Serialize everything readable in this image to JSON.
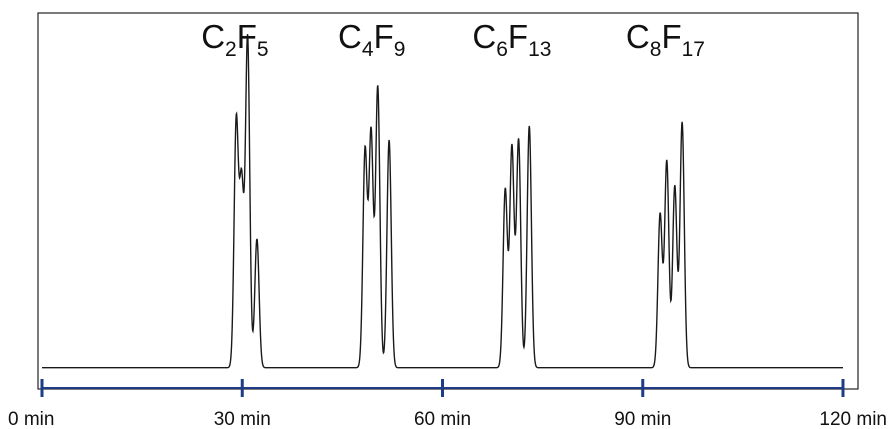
{
  "chart_data": {
    "type": "line",
    "xlabel": "",
    "ylabel": "",
    "xlim": [
      0,
      120
    ],
    "x_unit": "min",
    "grid": false,
    "legend": "none",
    "x_ticks": [
      {
        "value": 0,
        "label": "0 min"
      },
      {
        "value": 30,
        "label": "30 min"
      },
      {
        "value": 60,
        "label": "60 min"
      },
      {
        "value": 90,
        "label": "90 min"
      },
      {
        "value": 120,
        "label": "120 min"
      }
    ],
    "peak_groups": [
      {
        "formula": "C2F5",
        "base": "C",
        "n1": "2",
        "mid": "F",
        "n2": "5",
        "center_min": 29.5
      },
      {
        "formula": "C4F9",
        "base": "C",
        "n1": "4",
        "mid": "F",
        "n2": "9",
        "center_min": 50
      },
      {
        "formula": "C6F13",
        "base": "C",
        "n1": "6",
        "mid": "F",
        "n2": "13",
        "center_min": 71
      },
      {
        "formula": "C8F17",
        "base": "C",
        "n1": "8",
        "mid": "F",
        "n2": "17",
        "center_min": 94
      }
    ],
    "ylim": [
      0,
      1
    ],
    "peaks": [
      {
        "x": 29.1,
        "y": 0.71
      },
      {
        "x": 29.9,
        "y": 0.53
      },
      {
        "x": 30.8,
        "y": 0.95
      },
      {
        "x": 32.2,
        "y": 0.38
      },
      {
        "x": 48.4,
        "y": 0.63
      },
      {
        "x": 49.3,
        "y": 0.68
      },
      {
        "x": 50.3,
        "y": 0.81
      },
      {
        "x": 52.0,
        "y": 0.66
      },
      {
        "x": 69.4,
        "y": 0.52
      },
      {
        "x": 70.4,
        "y": 0.64
      },
      {
        "x": 71.4,
        "y": 0.66
      },
      {
        "x": 73.0,
        "y": 0.7
      },
      {
        "x": 92.6,
        "y": 0.45
      },
      {
        "x": 93.6,
        "y": 0.6
      },
      {
        "x": 94.8,
        "y": 0.53
      },
      {
        "x": 95.9,
        "y": 0.71
      }
    ],
    "baseline": 0.015,
    "colors": {
      "trace": "#1a1a1a",
      "axis": "#1f3c88",
      "frame": "#222222"
    }
  }
}
